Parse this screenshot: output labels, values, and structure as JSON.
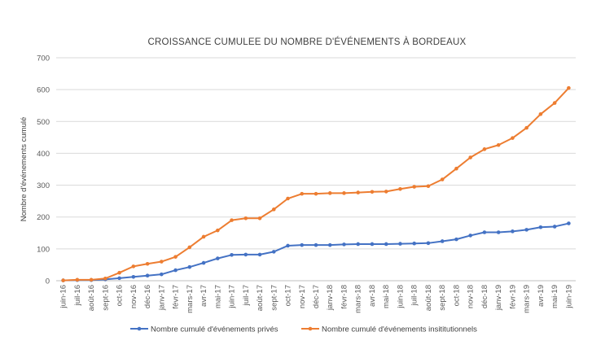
{
  "chart_data": {
    "type": "line",
    "title": "CROISSANCE CUMULEE DU NOMBRE D'ÉVÉNEMENTS À BORDEAUX",
    "xlabel": "",
    "ylabel": "Nombre d'événements cumulé",
    "ylim": [
      0,
      700
    ],
    "yticks": [
      0,
      100,
      200,
      300,
      400,
      500,
      600,
      700
    ],
    "grid": true,
    "legend": "bottom",
    "categories": [
      "juin-16",
      "juil-16",
      "août-16",
      "sept-16",
      "oct-16",
      "nov-16",
      "déc-16",
      "janv-17",
      "févr-17",
      "mars-17",
      "avr-17",
      "mai-17",
      "juin-17",
      "juil-17",
      "août-17",
      "sept-17",
      "oct-17",
      "nov-17",
      "déc-17",
      "janv-18",
      "févr-18",
      "mars-18",
      "avr-18",
      "mai-18",
      "juin-18",
      "juil-18",
      "août-18",
      "sept-18",
      "oct-18",
      "nov-18",
      "déc-18",
      "janv-19",
      "févr-19",
      "mars-19",
      "avr-19",
      "mai-19",
      "juin-19"
    ],
    "series": [
      {
        "name": "Nombre cumulé d'événements privés",
        "color": "#4472c4",
        "values": [
          1,
          2,
          2,
          4,
          8,
          12,
          16,
          20,
          33,
          43,
          56,
          70,
          81,
          82,
          82,
          91,
          110,
          112,
          112,
          112,
          114,
          115,
          115,
          115,
          116,
          117,
          118,
          124,
          130,
          142,
          152,
          152,
          155,
          160,
          168,
          170,
          180
        ]
      },
      {
        "name": "Nombre cumulé d'événements insititutionnels",
        "color": "#ed7d31",
        "values": [
          1,
          3,
          3,
          7,
          25,
          45,
          53,
          60,
          75,
          105,
          138,
          158,
          190,
          196,
          196,
          224,
          258,
          273,
          273,
          275,
          275,
          277,
          279,
          280,
          288,
          295,
          297,
          318,
          352,
          387,
          413,
          426,
          448,
          480,
          523,
          558,
          605
        ]
      }
    ]
  }
}
